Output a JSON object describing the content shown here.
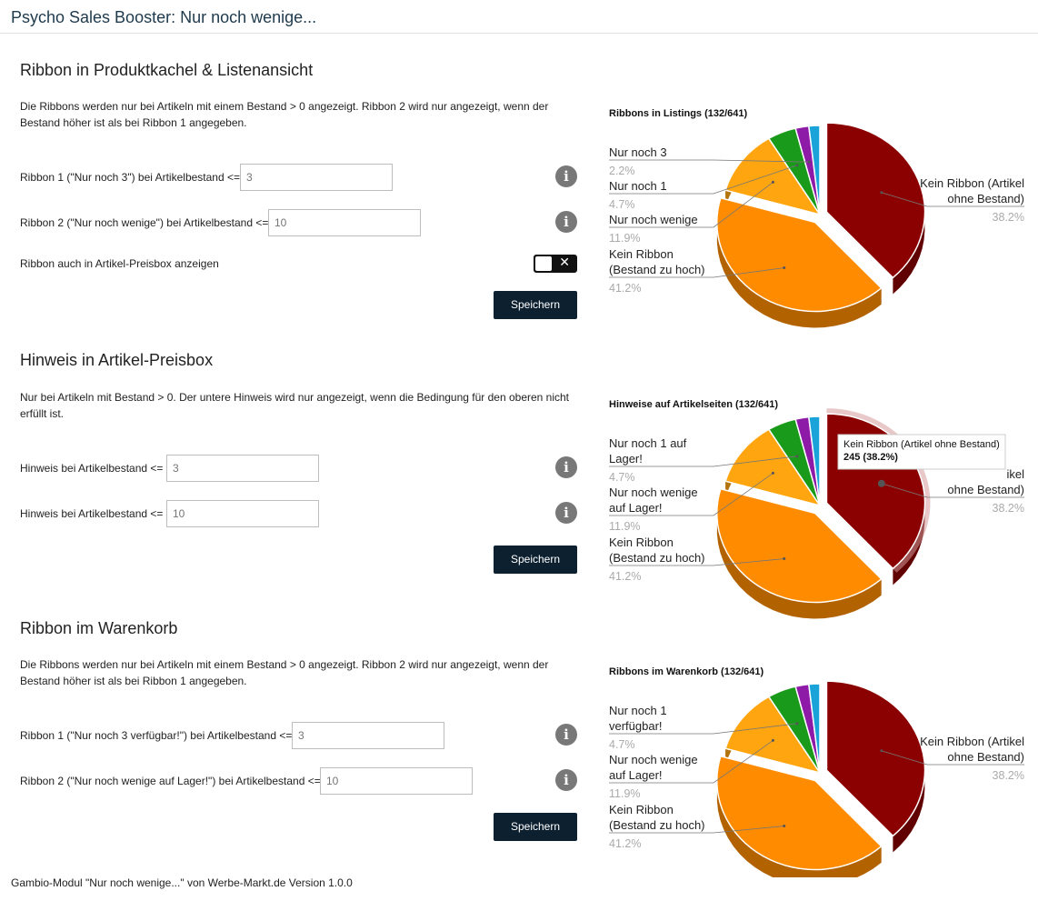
{
  "header": {
    "title": "Psycho Sales Booster: Nur noch wenige..."
  },
  "section1": {
    "heading": "Ribbon in Produktkachel & Listenansicht",
    "description": "Die Ribbons werden nur bei Artikeln mit einem Bestand > 0 angezeigt. Ribbon 2 wird nur angezeigt, wenn der Bestand höher ist als bei Ribbon 1 angegeben.",
    "ribbon1_label": "Ribbon 1 (\"Nur noch 3\") bei Artikelbestand <=",
    "ribbon1_placeholder": "3",
    "ribbon2_label": "Ribbon 2 (\"Nur noch wenige\") bei Artikelbestand <=",
    "ribbon2_placeholder": "10",
    "toggle_label": "Ribbon auch in Artikel-Preisbox anzeigen",
    "toggle_state": "off",
    "save_label": "Speichern"
  },
  "section2": {
    "heading": "Hinweis in Artikel-Preisbox",
    "description": "Nur bei Artikeln mit Bestand > 0. Der untere Hinweis wird nur angezeigt, wenn die Bedingung für den oberen nicht erfüllt ist.",
    "hint1_label": "Hinweis bei Artikelbestand <=",
    "hint1_placeholder": "3",
    "hint2_label": "Hinweis bei Artikelbestand <=",
    "hint2_placeholder": "10",
    "save_label": "Speichern"
  },
  "section3": {
    "heading": "Ribbon im Warenkorb",
    "description": "Die Ribbons werden nur bei Artikeln mit einem Bestand > 0 angezeigt. Ribbon 2 wird nur angezeigt, wenn der Bestand höher ist als bei Ribbon 1 angegeben.",
    "ribbon1_label": "Ribbon 1 (\"Nur noch 3 verfügbar!\") bei Artikelbestand <=",
    "ribbon1_placeholder": "3",
    "ribbon2_label": "Ribbon 2 (\"Nur noch wenige auf Lager!\") bei Artikelbestand <=",
    "ribbon2_placeholder": "10",
    "save_label": "Speichern"
  },
  "footer": {
    "text": "Gambio-Modul \"Nur noch wenige...\" von Werbe-Markt.de Version 1.0.0"
  },
  "icons": {
    "info": "info-icon",
    "toggle_x": "close-icon"
  },
  "colors": {
    "slice_kein_ribbon_ohne": "#8b0000",
    "slice_kein_ribbon_hoch": "#ff8c00",
    "slice_wenige": "#ffa510",
    "slice_nur1": "#1a9a1a",
    "slice_nur3": "#8e1ba8",
    "slice_other": "#1aa3d8"
  },
  "chart_data": [
    {
      "type": "pie",
      "title": "Ribbons in Listings (132/641)",
      "slices": [
        {
          "label": "Kein Ribbon (Artikel ohne Bestand)",
          "value": 38.2,
          "pct": "38.2%",
          "color": "#8b0000"
        },
        {
          "label": "Kein Ribbon (Bestand zu hoch)",
          "value": 41.2,
          "pct": "41.2%",
          "color": "#ff8c00"
        },
        {
          "label": "Nur noch wenige",
          "value": 11.9,
          "pct": "11.9%",
          "color": "#ffa510"
        },
        {
          "label": "Nur noch 1",
          "value": 4.7,
          "pct": "4.7%",
          "color": "#1a9a1a"
        },
        {
          "label": "Nur noch 3",
          "value": 2.2,
          "pct": "2.2%",
          "color": "#8e1ba8"
        },
        {
          "label": "",
          "value": 1.8,
          "pct": "",
          "color": "#1aa3d8"
        }
      ]
    },
    {
      "type": "pie",
      "title": "Hinweise auf Artikelseiten (132/641)",
      "tooltip": {
        "line1": "Kein Ribbon (Artikel ohne Bestand)",
        "line2": "245 (38.2%)"
      },
      "slices": [
        {
          "label": "Kein Ribbon (Artikel ohne Bestand)",
          "value": 38.2,
          "pct": "38.2%",
          "color": "#8b0000"
        },
        {
          "label": "Kein Ribbon (Bestand zu hoch)",
          "value": 41.2,
          "pct": "41.2%",
          "color": "#ff8c00"
        },
        {
          "label": "Nur noch wenige auf Lager!",
          "value": 11.9,
          "pct": "11.9%",
          "color": "#ffa510"
        },
        {
          "label": "Nur noch 1 auf Lager!",
          "value": 4.7,
          "pct": "4.7%",
          "color": "#1a9a1a"
        },
        {
          "label": "",
          "value": 2.2,
          "pct": "",
          "color": "#8e1ba8"
        },
        {
          "label": "",
          "value": 1.8,
          "pct": "",
          "color": "#1aa3d8"
        }
      ]
    },
    {
      "type": "pie",
      "title": "Ribbons im Warenkorb (132/641)",
      "slices": [
        {
          "label": "Kein Ribbon (Artikel ohne Bestand)",
          "value": 38.2,
          "pct": "38.2%",
          "color": "#8b0000"
        },
        {
          "label": "Kein Ribbon (Bestand zu hoch)",
          "value": 41.2,
          "pct": "41.2%",
          "color": "#ff8c00"
        },
        {
          "label": "Nur noch wenige auf Lager!",
          "value": 11.9,
          "pct": "11.9%",
          "color": "#ffa510"
        },
        {
          "label": "Nur noch 1 verfügbar!",
          "value": 4.7,
          "pct": "4.7%",
          "color": "#1a9a1a"
        },
        {
          "label": "",
          "value": 2.2,
          "pct": "",
          "color": "#8e1ba8"
        },
        {
          "label": "",
          "value": 1.8,
          "pct": "",
          "color": "#1aa3d8"
        }
      ]
    }
  ]
}
